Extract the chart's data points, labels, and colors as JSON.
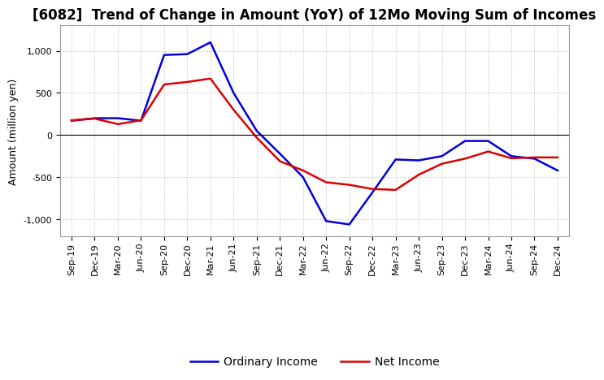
{
  "title": "[6082]  Trend of Change in Amount (YoY) of 12Mo Moving Sum of Incomes",
  "ylabel": "Amount (million yen)",
  "background_color": "#ffffff",
  "plot_bg_color": "#ffffff",
  "grid_color": "#bbbbbb",
  "labels": [
    "Sep-19",
    "Dec-19",
    "Mar-20",
    "Jun-20",
    "Sep-20",
    "Dec-20",
    "Mar-21",
    "Jun-21",
    "Sep-21",
    "Dec-21",
    "Mar-22",
    "Jun-22",
    "Sep-22",
    "Dec-22",
    "Mar-23",
    "Jun-23",
    "Sep-23",
    "Dec-23",
    "Mar-24",
    "Jun-24",
    "Sep-24",
    "Dec-24"
  ],
  "ordinary_income": [
    170,
    200,
    200,
    170,
    950,
    960,
    1100,
    500,
    50,
    -220,
    -500,
    -1020,
    -1060,
    -680,
    -290,
    -300,
    -250,
    -70,
    -70,
    -250,
    -280,
    -420
  ],
  "net_income": [
    175,
    195,
    130,
    175,
    600,
    630,
    670,
    300,
    -30,
    -310,
    -420,
    -560,
    -590,
    -640,
    -650,
    -470,
    -340,
    -280,
    -195,
    -275,
    -265,
    -265
  ],
  "ordinary_color": "#0000dd",
  "net_color": "#dd0000",
  "ylim": [
    -1200,
    1300
  ],
  "yticks": [
    -1000,
    -500,
    0,
    500,
    1000
  ],
  "title_fontsize": 12,
  "axis_fontsize": 9,
  "tick_fontsize": 8,
  "legend_fontsize": 10
}
